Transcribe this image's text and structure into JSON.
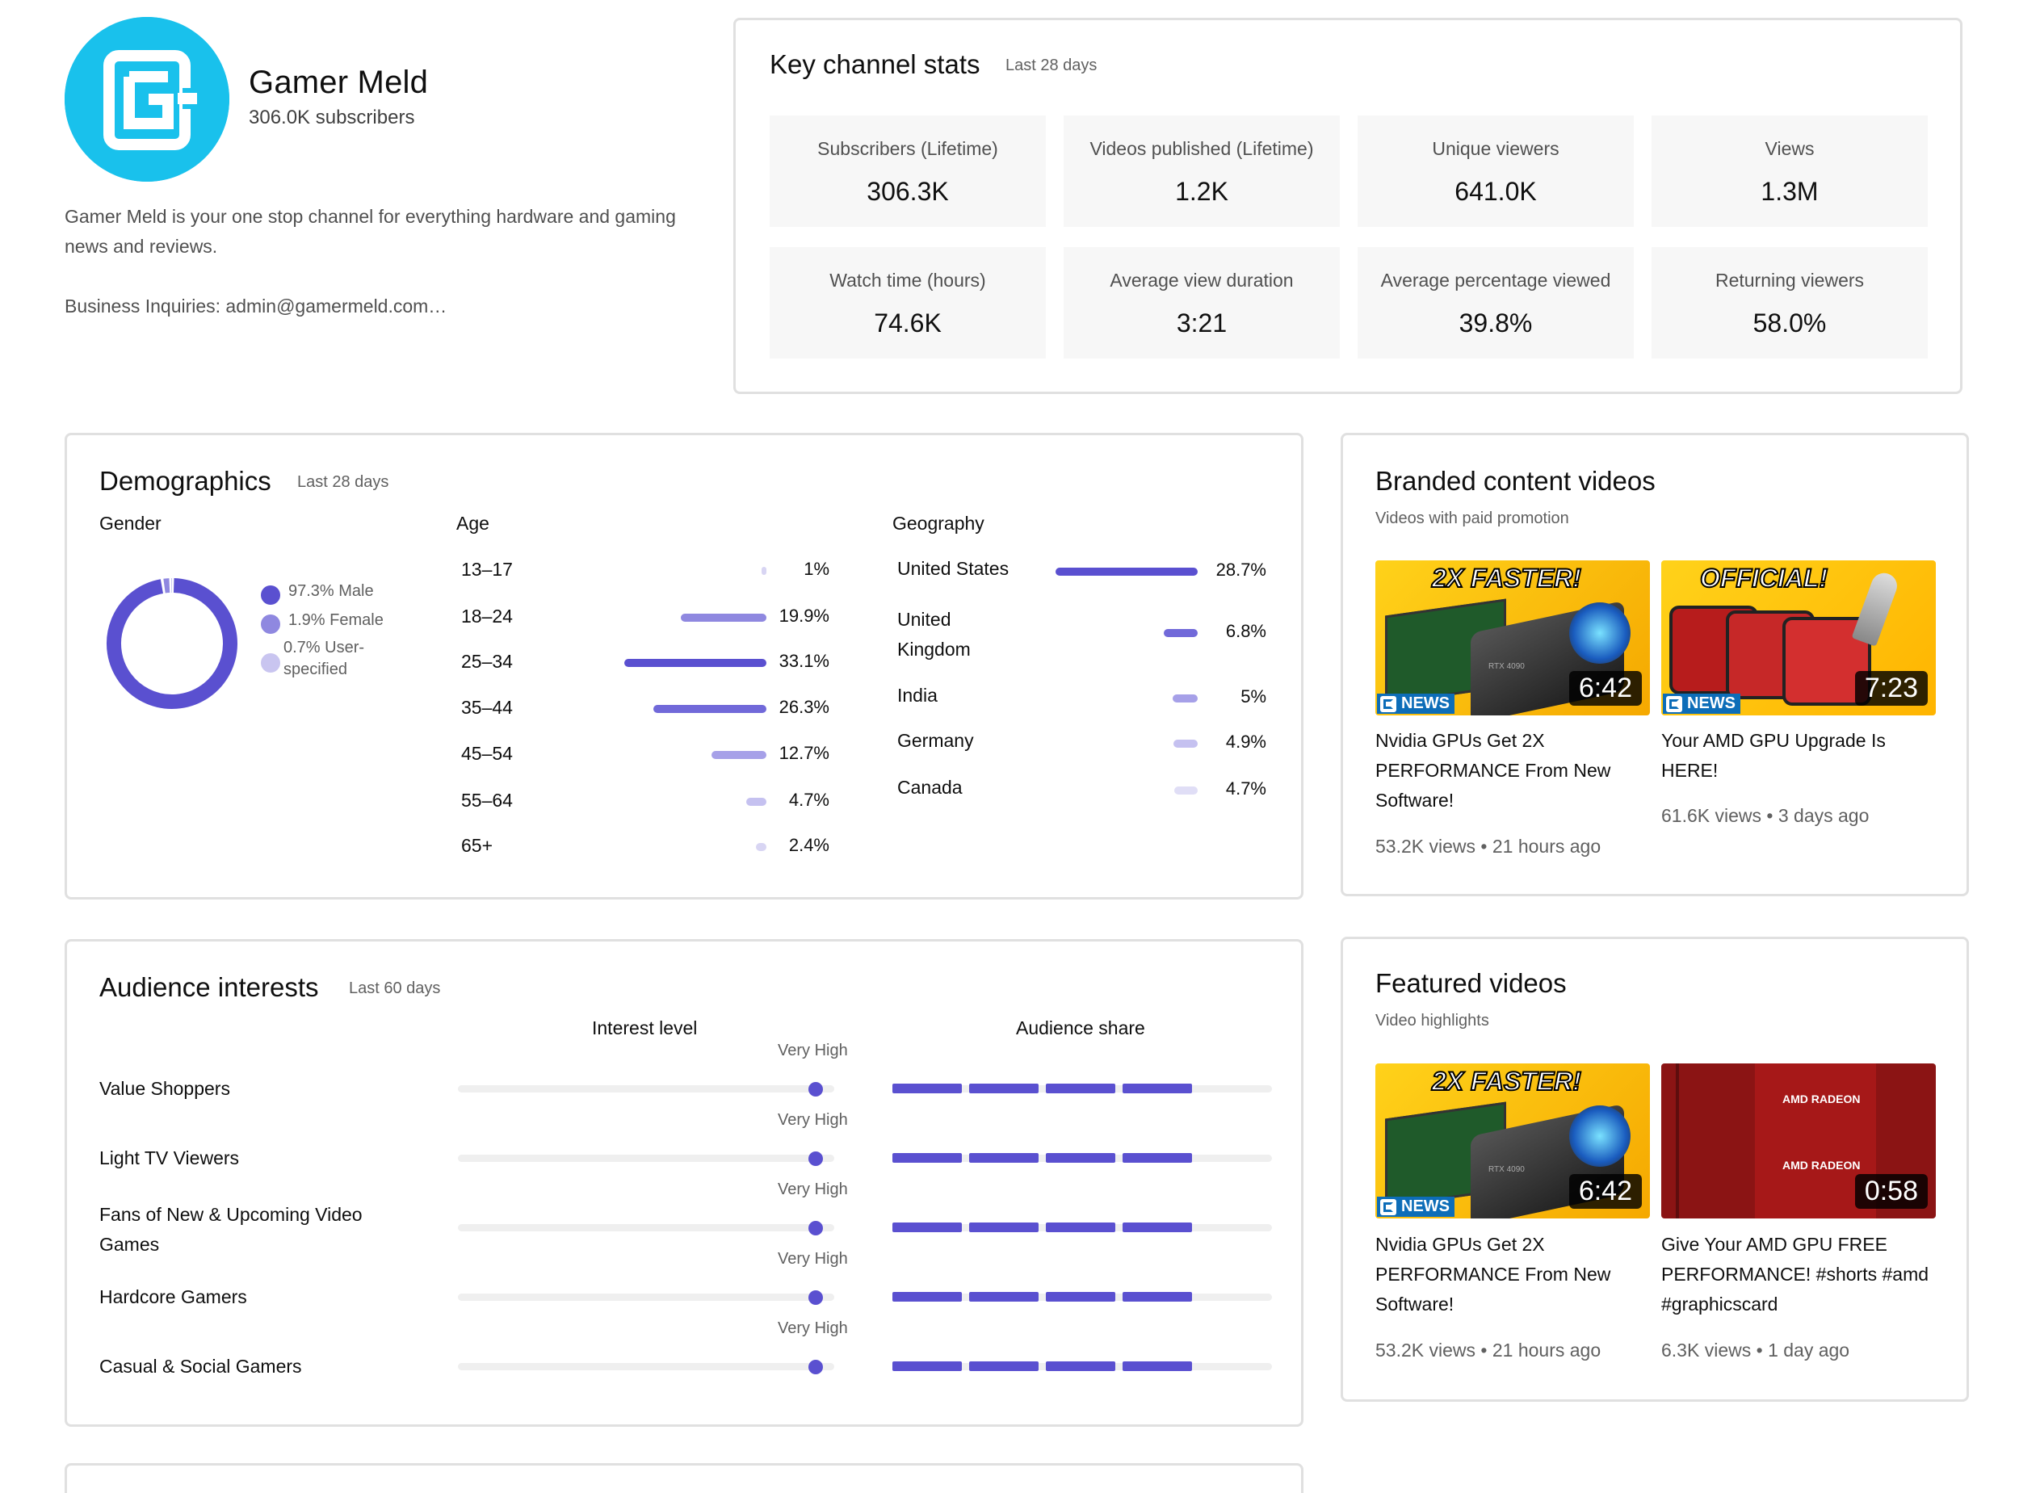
{
  "channel": {
    "name": "Gamer Meld",
    "subscribers": "306.0K subscribers",
    "description": "Gamer Meld is your one stop channel for everything hardware and gaming news and reviews.",
    "business": "Business Inquiries: admin@gamermeld.com…",
    "avatar_color": "#19c1ec"
  },
  "key_stats": {
    "title": "Key channel stats",
    "period": "Last 28 days",
    "tiles": [
      {
        "label": "Subscribers (Lifetime)",
        "value": "306.3K"
      },
      {
        "label": "Videos published (Lifetime)",
        "value": "1.2K"
      },
      {
        "label": "Unique viewers",
        "value": "641.0K"
      },
      {
        "label": "Views",
        "value": "1.3M"
      },
      {
        "label": "Watch time (hours)",
        "value": "74.6K"
      },
      {
        "label": "Average view duration",
        "value": "3:21"
      },
      {
        "label": "Average percentage viewed",
        "value": "39.8%"
      },
      {
        "label": "Returning viewers",
        "value": "58.0%"
      }
    ]
  },
  "demographics": {
    "title": "Demographics",
    "period": "Last 28 days",
    "gender": {
      "label": "Gender",
      "items": [
        {
          "text": "97.3% Male",
          "percent": 97.3,
          "color": "#5a50d0"
        },
        {
          "text": "1.9% Female",
          "percent": 1.9,
          "color": "#8f88e0"
        },
        {
          "text": "0.7% User-specified",
          "line1": "0.7% User-",
          "line2": "specified",
          "percent": 0.7,
          "color": "#c9c5f0"
        }
      ]
    },
    "age": {
      "label": "Age",
      "rows": [
        {
          "label": "13–17",
          "value": "1%",
          "percent": 1
        },
        {
          "label": "18–24",
          "value": "19.9%",
          "percent": 19.9
        },
        {
          "label": "25–34",
          "value": "33.1%",
          "percent": 33.1
        },
        {
          "label": "35–44",
          "value": "26.3%",
          "percent": 26.3
        },
        {
          "label": "45–54",
          "value": "12.7%",
          "percent": 12.7
        },
        {
          "label": "55–64",
          "value": "4.7%",
          "percent": 4.7
        },
        {
          "label": "65+",
          "value": "2.4%",
          "percent": 2.4
        }
      ]
    },
    "geography": {
      "label": "Geography",
      "rows": [
        {
          "label": "United States",
          "value": "28.7%",
          "percent": 28.7
        },
        {
          "label": "United Kingdom",
          "line1": "United",
          "line2": "Kingdom",
          "value": "6.8%",
          "percent": 6.8
        },
        {
          "label": "India",
          "value": "5%",
          "percent": 5
        },
        {
          "label": "Germany",
          "value": "4.9%",
          "percent": 4.9
        },
        {
          "label": "Canada",
          "value": "4.7%",
          "percent": 4.7
        }
      ]
    }
  },
  "branded": {
    "title": "Branded content videos",
    "subtitle": "Videos with paid promotion",
    "videos": [
      {
        "title": "Nvidia GPUs Get 2X PERFORMANCE From New Software!",
        "views": "53.2K views",
        "age": "21 hours ago",
        "duration": "6:42",
        "thumb_text": "2X FASTER!",
        "tag": "NEWS",
        "chip": "RTX 4090"
      },
      {
        "title": "Your AMD GPU Upgrade Is HERE!",
        "views": "61.6K views",
        "age": "3 days ago",
        "duration": "7:23",
        "thumb_text": "OFFICIAL!",
        "tag": "NEWS"
      }
    ]
  },
  "featured": {
    "title": "Featured videos",
    "subtitle": "Video highlights",
    "videos": [
      {
        "title": "Nvidia GPUs Get 2X PERFORMANCE From New Software!",
        "views": "53.2K views",
        "age": "21 hours ago",
        "duration": "6:42",
        "thumb_text": "2X FASTER!",
        "tag": "NEWS",
        "chip": "RTX 4090"
      },
      {
        "title": "Give Your AMD GPU FREE PERFORMANCE! #shorts #amd #graphicscard",
        "views": "6.3K views",
        "age": "1 day ago",
        "duration": "0:58",
        "brand": "AMD RADEON"
      }
    ]
  },
  "interests": {
    "title": "Audience interests",
    "period": "Last 60 days",
    "col_interest": "Interest level",
    "col_share": "Audience share",
    "rows": [
      {
        "label": "Value Shoppers",
        "level": "Very High",
        "level_fraction": 0.95,
        "share_segments": 4
      },
      {
        "label": "Light TV Viewers",
        "level": "Very High",
        "level_fraction": 0.95,
        "share_segments": 4
      },
      {
        "label": "Fans of New & Upcoming Video Games",
        "level": "Very High",
        "level_fraction": 0.95,
        "share_segments": 4
      },
      {
        "label": "Hardcore Gamers",
        "level": "Very High",
        "level_fraction": 0.95,
        "share_segments": 4
      },
      {
        "label": "Casual & Social Gamers",
        "level": "Very High",
        "level_fraction": 0.95,
        "share_segments": 4
      }
    ]
  },
  "colors": {
    "accent": "#5a50d0",
    "accent_mid": "#8f88e0",
    "accent_light": "#c9c5f0",
    "news_tag": "#0d6db8"
  }
}
